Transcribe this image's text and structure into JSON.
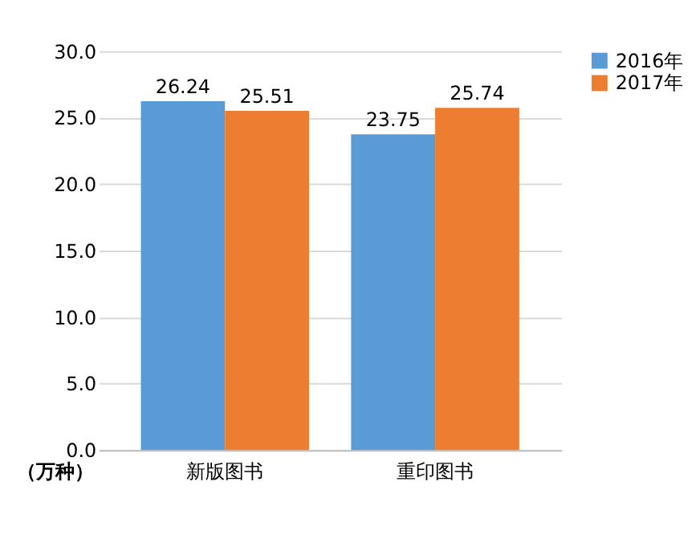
{
  "chart_data": {
    "type": "bar",
    "categories": [
      "新版图书",
      "重印图书"
    ],
    "ylabel": "（万种）",
    "series": [
      {
        "name": "2016年",
        "color": "#5b9bd5",
        "values": [
          26.24,
          23.75
        ]
      },
      {
        "name": "2017年",
        "color": "#ed7d31",
        "values": [
          25.51,
          25.74
        ]
      }
    ],
    "ylim": [
      0,
      30
    ],
    "yticks": [
      {
        "value": 0,
        "label": "0.0"
      },
      {
        "value": 5,
        "label": "5.0"
      },
      {
        "value": 10,
        "label": "10.0"
      },
      {
        "value": 15,
        "label": "15.0"
      },
      {
        "value": 20,
        "label": "20.0"
      },
      {
        "value": 25,
        "label": "25.0"
      },
      {
        "value": 30,
        "label": "30.0"
      }
    ],
    "grid": "y",
    "legend": "right",
    "data_labels": true
  }
}
